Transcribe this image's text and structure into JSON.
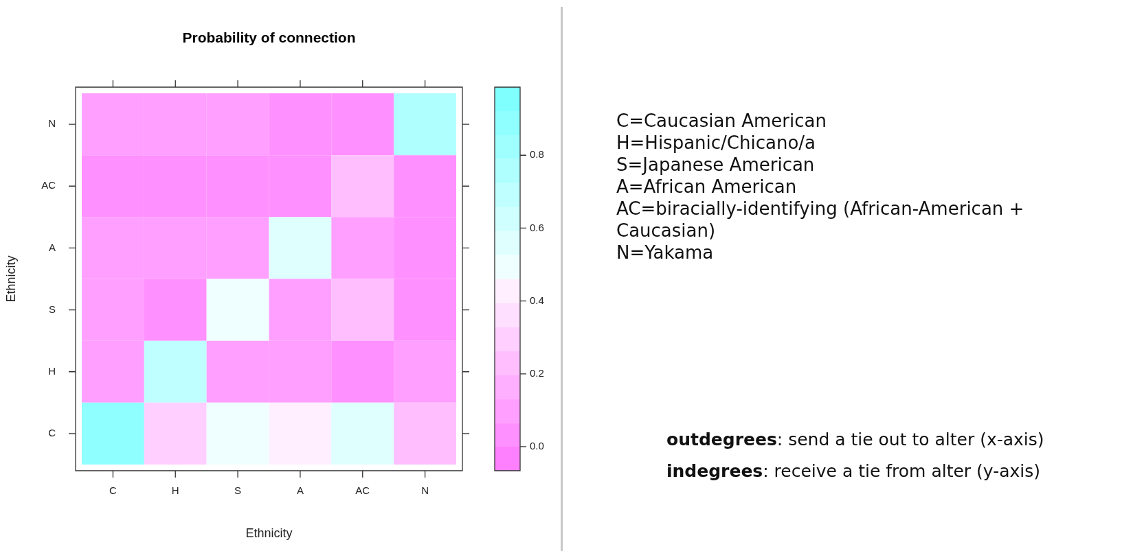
{
  "chart_data": {
    "type": "heatmap",
    "title": "Probability of connection",
    "xlabel": "Ethnicity",
    "ylabel": "Ethnicity",
    "categories": [
      "C",
      "H",
      "S",
      "A",
      "AC",
      "N"
    ],
    "y_categories": [
      "N",
      "AC",
      "A",
      "S",
      "H",
      "C"
    ],
    "cells": [
      [
        0.1,
        0.1,
        0.1,
        0.03,
        0.03,
        0.76
      ],
      [
        0.03,
        0.03,
        0.03,
        0.03,
        0.23,
        0.03
      ],
      [
        0.1,
        0.1,
        0.1,
        0.56,
        0.1,
        0.03
      ],
      [
        0.1,
        0.03,
        0.49,
        0.1,
        0.23,
        0.03
      ],
      [
        0.1,
        0.69,
        0.1,
        0.1,
        0.03,
        0.1
      ],
      [
        0.89,
        0.3,
        0.49,
        0.43,
        0.56,
        0.23
      ]
    ],
    "clim": [
      -0.066,
      0.987
    ],
    "cticks": [
      {
        "value": 0,
        "label": "0.0"
      },
      {
        "value": 0.2,
        "label": "0.2"
      },
      {
        "value": 0.4,
        "label": "0.4"
      },
      {
        "value": 0.6,
        "label": "0.6"
      },
      {
        "value": 0.8,
        "label": "0.8"
      }
    ],
    "colors": [
      "#ff80ff",
      "#ff90ff",
      "#ff9fff",
      "#ffafff",
      "#ffbfff",
      "#ffcfff",
      "#ffdfff",
      "#ffefff",
      "#efffff",
      "#dfffff",
      "#cfffff",
      "#bfffff",
      "#afffff",
      "#9fffff",
      "#90ffff",
      "#80ffff"
    ],
    "annotations": [
      "C=Caucasian American",
      "H=Hispanic/Chicano/a",
      "S=Japanese American",
      "A=African American",
      "AC=biracially-identifying (African-American + Caucasian)",
      "N=Yakama",
      "outdegrees: send a tie out to alter (x-axis)",
      "indegrees: receive a tie from alter (y-axis)"
    ]
  }
}
